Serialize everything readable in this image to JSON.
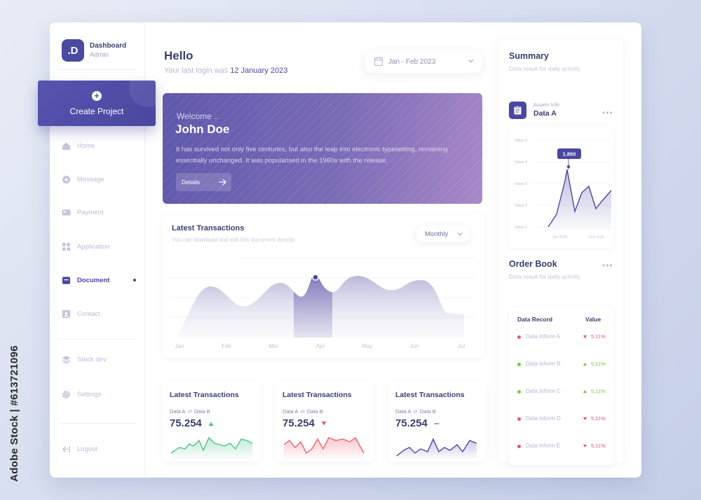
{
  "watermark_vertical": "Adobe Stock | #613721096",
  "brand": {
    "logo": ".D",
    "title": "Dashboard",
    "subtitle": "Admin"
  },
  "create_button": {
    "label": "Create Project",
    "icon": "plus-icon"
  },
  "nav": [
    {
      "label": "Home",
      "icon": "home-icon",
      "active": false
    },
    {
      "label": "Message",
      "icon": "message-icon",
      "active": false
    },
    {
      "label": "Payment",
      "icon": "payment-icon",
      "active": false
    },
    {
      "label": "Application",
      "icon": "grid-icon",
      "active": false
    },
    {
      "label": "Document",
      "icon": "document-icon",
      "active": true
    },
    {
      "label": "Contact",
      "icon": "contact-icon",
      "active": false
    },
    {
      "label": "Stack dev",
      "icon": "layers-icon",
      "active": false
    },
    {
      "label": "Settings",
      "icon": "gear-icon",
      "active": false
    },
    {
      "label": "Logout",
      "icon": "logout-icon",
      "active": false
    }
  ],
  "header": {
    "greeting": "Hello",
    "last_login_prefix": "Your last login was",
    "last_login_date": "12 January 2023",
    "date_range": "Jan - Feb 2023"
  },
  "welcome": {
    "greeting": "Welcome ..",
    "name": "John Doe",
    "description": "It has survived not only five centuries, but also the leap into electronic typesetting, remaining essentially unchanged. It was popularised in the 1960s with the release.",
    "button_label": "Details"
  },
  "transactions": {
    "title": "Latest Transactions",
    "subtitle": "You can download and edit this document directly",
    "period": "Monthly",
    "months": [
      "Jan",
      "Feb",
      "Mar",
      "Apr",
      "May",
      "Jun",
      "Jul"
    ],
    "highlighted_month": "Apr"
  },
  "mini_cards": [
    {
      "title": "Latest Transactions",
      "series_a": "Data A",
      "series_b": "Data B",
      "value": "75.254",
      "trend": "up",
      "color": "#4cc38a"
    },
    {
      "title": "Latest Transactions",
      "series_a": "Data A",
      "series_b": "Data B",
      "value": "75.254",
      "trend": "down",
      "color": "#f05f6e"
    },
    {
      "title": "Latest Transactions",
      "series_a": "Data A",
      "series_b": "Data B",
      "value": "75.254",
      "trend": "flat",
      "color": "#4a47a0"
    }
  ],
  "summary": {
    "title": "Summary",
    "subtitle": "Data result for daily activity",
    "assets_label": "Assets Info",
    "assets_name": "Data A",
    "y_labels": [
      "Value 5",
      "Value 4",
      "Value 3",
      "Value 2",
      "Value 1"
    ],
    "x_labels": [
      "Jan 2018",
      "Feb 2018"
    ],
    "tooltip": "1.850"
  },
  "order_book": {
    "title": "Order Book",
    "subtitle": "Data result for daily activity",
    "col_record": "Data Record",
    "col_value": "Value",
    "rows": [
      {
        "name": "Data Inform A",
        "value": "5,11%",
        "trend": "down",
        "color": "#e8508a"
      },
      {
        "name": "Data Inform B",
        "value": "5,11%",
        "trend": "up",
        "color": "#7cc63c"
      },
      {
        "name": "Data Inform C",
        "value": "5,11%",
        "trend": "up",
        "color": "#7cc63c"
      },
      {
        "name": "Data Inform D",
        "value": "5,11%",
        "trend": "down",
        "color": "#e8508a"
      },
      {
        "name": "Data Inform E",
        "value": "5,11%",
        "trend": "down",
        "color": "#e8508a"
      }
    ]
  },
  "colors": {
    "accent": "#4a47a0",
    "up": "#7cc63c",
    "down": "#e8508a"
  }
}
